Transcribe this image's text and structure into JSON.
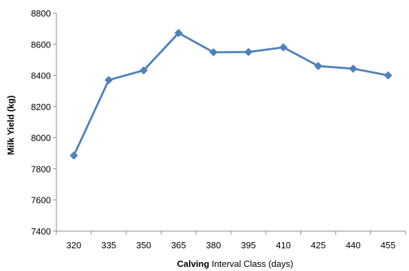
{
  "chart_data": {
    "type": "line",
    "x": [
      "320",
      "335",
      "350",
      "365",
      "380",
      "395",
      "410",
      "425",
      "440",
      "455"
    ],
    "series": [
      {
        "values": [
          7885,
          8370,
          8432,
          8672,
          8548,
          8550,
          8580,
          8460,
          8443,
          8400
        ]
      }
    ],
    "xlabel_bold": "Calving",
    "xlabel_rest": " Interval Class (days)",
    "ylabel": "Milk Yield (kg)",
    "ylim": [
      7400,
      8800
    ],
    "yticks": [
      7400,
      7600,
      7800,
      8000,
      8200,
      8400,
      8600,
      8800
    ],
    "grid": false,
    "line_color": "#4f81bd",
    "marker": "diamond"
  }
}
